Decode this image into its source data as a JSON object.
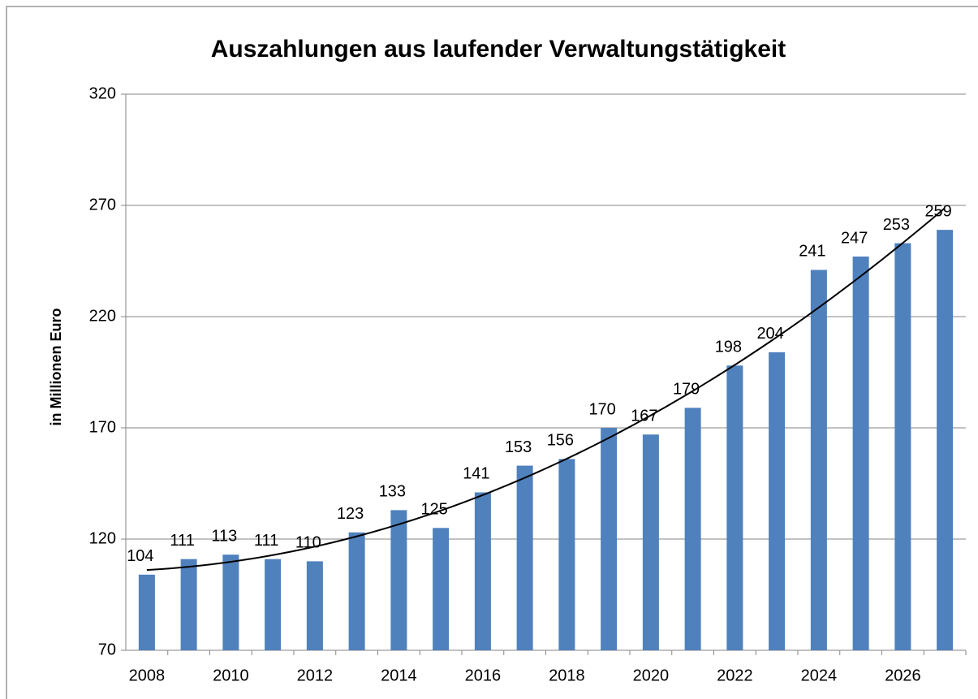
{
  "chart_data": {
    "type": "bar",
    "title": "Auszahlungen aus laufender Verwaltungstätigkeit",
    "y_label": "in Millionen Euro",
    "categories": [
      "2008",
      null,
      "2010",
      null,
      "2012",
      null,
      "2014",
      null,
      "2016",
      null,
      "2018",
      null,
      "2020",
      null,
      "2022",
      null,
      "2024",
      null,
      "2026",
      null
    ],
    "values": [
      104,
      111,
      113,
      111,
      110,
      123,
      133,
      125,
      141,
      153,
      156,
      170,
      167,
      179,
      198,
      204,
      241,
      247,
      253,
      259
    ],
    "color": "#4f81bd",
    "ylim": [
      70,
      320
    ],
    "yticks": [
      70,
      120,
      170,
      220,
      270,
      320
    ],
    "grid": true,
    "trendline": "polynomial"
  }
}
